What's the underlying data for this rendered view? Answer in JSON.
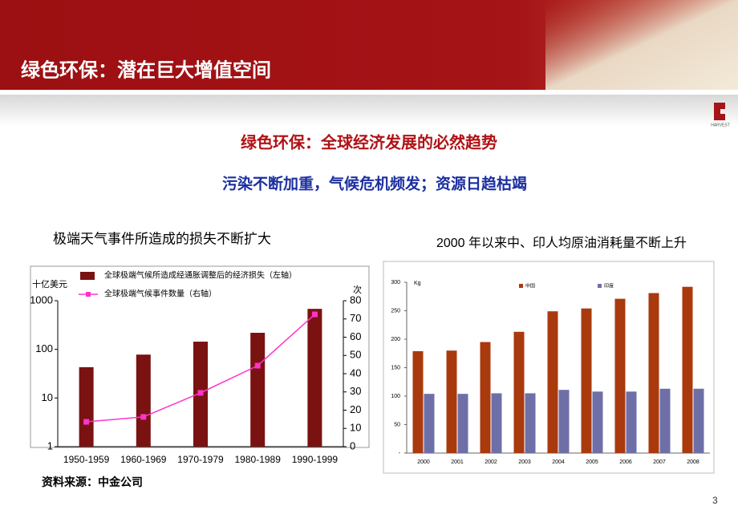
{
  "header": {
    "title": "绿色环保：潜在巨大增值空间",
    "logo": "HARVEST"
  },
  "subtitle": "绿色环保：全球经济发展的必然趋势",
  "tagline": "污染不断加重，气候危机频发；资源日趋枯竭",
  "source": "资料来源：中金公司",
  "page_number": "3",
  "chart_data": [
    {
      "type": "barline",
      "title": "极端天气事件所造成的损失不断扩大",
      "y_label": "十亿美元",
      "y2_label": "次",
      "categories": [
        "1950-1959",
        "1960-1969",
        "1970-1979",
        "1980-1989",
        "1990-1999"
      ],
      "ylim": [
        1,
        1000
      ],
      "yticks": [
        1,
        10,
        100,
        1000
      ],
      "log_scale": true,
      "y2lim": [
        0,
        80
      ],
      "y2ticks": [
        0,
        10,
        20,
        30,
        40,
        50,
        60,
        70,
        80
      ],
      "series": [
        {
          "name": "全球极端气候所造成经通胀调整后的经济损失（左轴）",
          "color": "#7a1212",
          "values": [
            43,
            78,
            144,
            219,
            680
          ]
        },
        {
          "name": "全球极端气候事件数量（右轴）",
          "color": "#ff33cc",
          "axis": "y2",
          "values": [
            13.6,
            16.3,
            29.5,
            44.4,
            72.5
          ]
        }
      ]
    },
    {
      "type": "bar",
      "title": "2000 年以来中、印人均原油消耗量不断上升",
      "y_label": "Kg",
      "categories": [
        "2000",
        "2001",
        "2002",
        "2003",
        "2004",
        "2005",
        "2006",
        "2007",
        "2008"
      ],
      "ylim": [
        0,
        300
      ],
      "yticks": [
        {
          "value": 0,
          "label": "-"
        },
        50,
        100,
        150,
        200,
        250,
        300
      ],
      "series": [
        {
          "name": "中国",
          "color": "#a93a0e",
          "values": [
            179,
            180,
            195,
            213,
            249,
            254,
            271,
            281,
            292
          ]
        },
        {
          "name": "印度",
          "color": "#6f6fa8",
          "values": [
            104,
            104,
            105,
            105,
            111,
            108,
            108,
            113,
            113
          ]
        }
      ]
    }
  ]
}
